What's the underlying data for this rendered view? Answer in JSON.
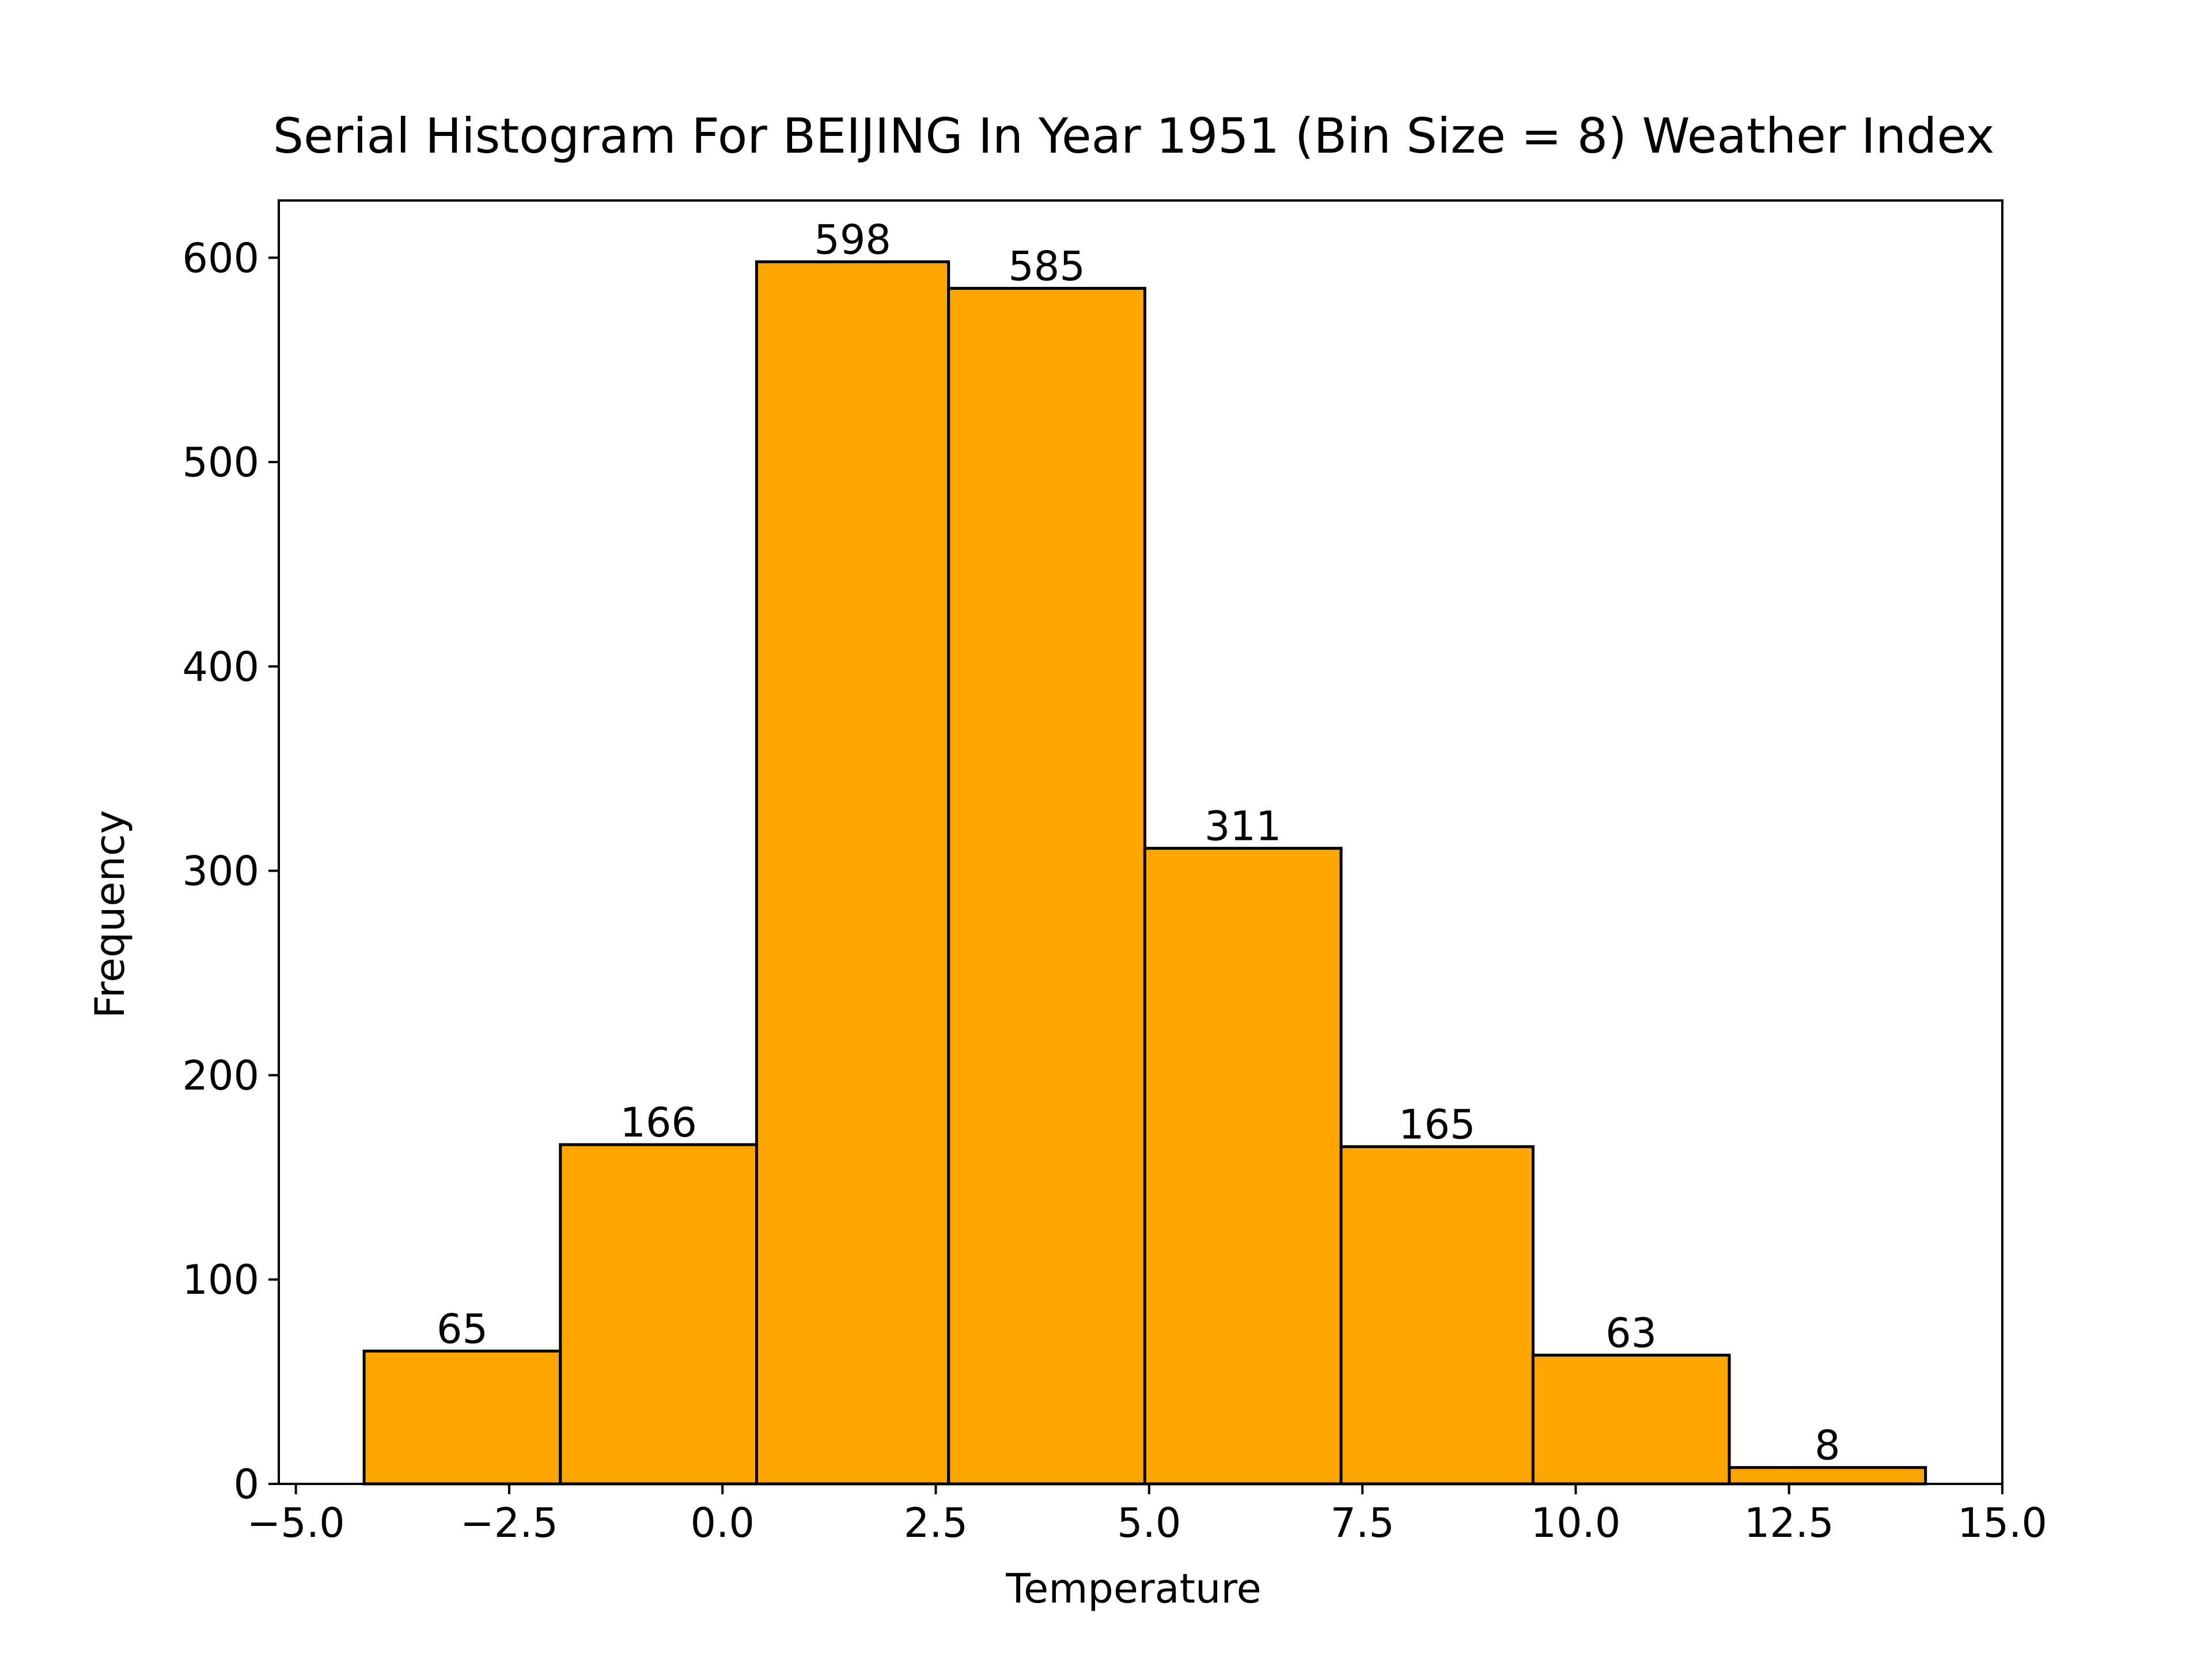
{
  "chart_data": {
    "type": "bar",
    "title": "Serial Histogram For BEIJING In Year 1951 (Bin Size = 8) Weather Index",
    "xlabel": "Temperature",
    "ylabel": "Frequency",
    "bin_edges": [
      -4.2,
      -1.9,
      0.4,
      2.65,
      4.95,
      7.25,
      9.5,
      11.8,
      14.1
    ],
    "values": [
      65,
      166,
      598,
      585,
      311,
      165,
      63,
      8
    ],
    "value_labels": [
      "65",
      "166",
      "598",
      "585",
      "311",
      "165",
      "63",
      "8"
    ],
    "xlim": [
      -5.2,
      15.0
    ],
    "ylim": [
      0,
      628
    ],
    "xticks": [
      -5.0,
      -2.5,
      0.0,
      2.5,
      5.0,
      7.5,
      10.0,
      12.5,
      15.0
    ],
    "xtick_labels": [
      "−5.0",
      "−2.5",
      "0.0",
      "2.5",
      "5.0",
      "7.5",
      "10.0",
      "12.5",
      "15.0"
    ],
    "yticks": [
      0,
      100,
      200,
      300,
      400,
      500,
      600
    ],
    "ytick_labels": [
      "0",
      "100",
      "200",
      "300",
      "400",
      "500",
      "600"
    ],
    "grid": false,
    "colors": {
      "bar_fill": "#ffa500",
      "bar_edge": "#000000",
      "axes": "#000000",
      "background": "#ffffff"
    }
  }
}
